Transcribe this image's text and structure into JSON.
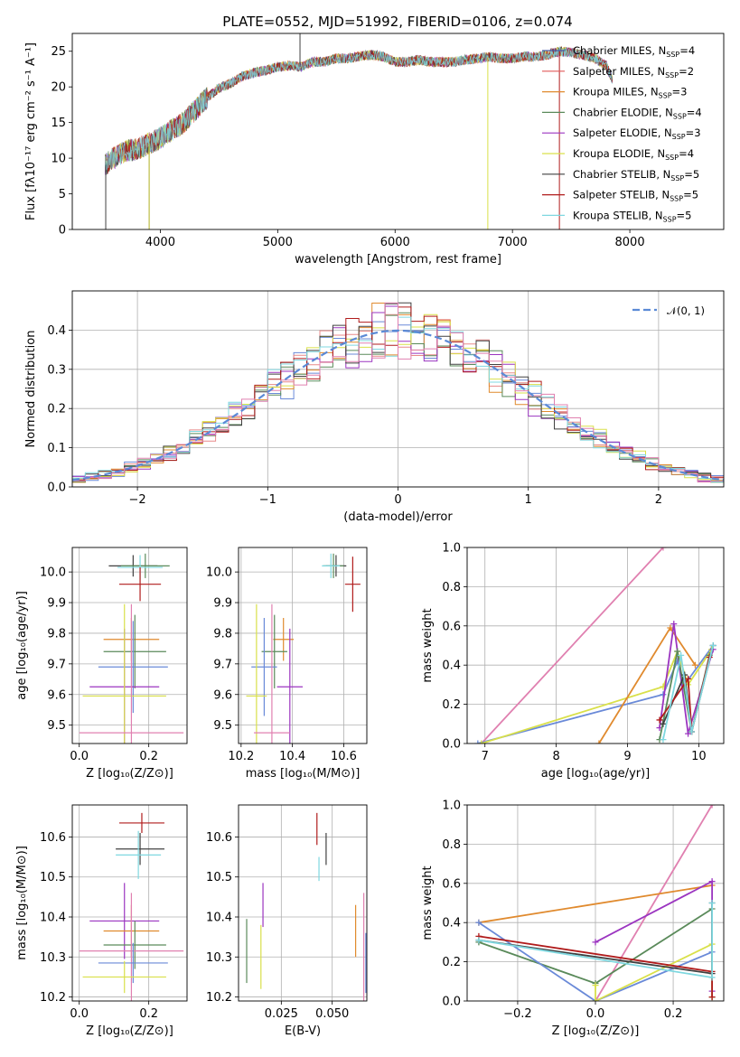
{
  "chart_data": [
    {
      "id": "spectrum",
      "type": "line",
      "title": "PLATE=0552, MJD=51992, FIBERID=0106, z=0.074",
      "xlabel": "wavelength [Angstrom, rest frame]",
      "ylabel": "Flux [fλ10⁻¹⁷ erg cm⁻² s⁻¹ A⁻¹]",
      "xlim": [
        3250,
        8800
      ],
      "ylim": [
        0,
        27.5
      ],
      "xticks": [
        4000,
        5000,
        6000,
        7000,
        8000
      ],
      "yticks": [
        0,
        5,
        10,
        15,
        20,
        25
      ],
      "grid": false,
      "legend_position": "right",
      "continuum": {
        "x": [
          3530,
          3600,
          3700,
          3800,
          3900,
          4000,
          4100,
          4200,
          4300,
          4400,
          4500,
          4600,
          4700,
          4800,
          4900,
          5000,
          5100,
          5200,
          5300,
          5400,
          5500,
          5600,
          5700,
          5800,
          5900,
          6000,
          6100,
          6200,
          6300,
          6400,
          6500,
          6600,
          6700,
          6800,
          6900,
          7000,
          7100,
          7200,
          7300,
          7400,
          7500,
          7600,
          7700,
          7800,
          7850
        ],
        "y": [
          9.0,
          10.0,
          11.0,
          11.3,
          12.0,
          12.8,
          14.0,
          15.0,
          16.8,
          18.5,
          19.8,
          20.5,
          21.5,
          22.0,
          22.3,
          22.8,
          23.0,
          22.8,
          23.5,
          23.5,
          24.0,
          24.0,
          24.3,
          24.5,
          24.2,
          23.5,
          23.5,
          23.8,
          23.5,
          23.5,
          23.5,
          23.8,
          24.0,
          24.2,
          24.0,
          24.0,
          24.3,
          24.2,
          24.5,
          25.0,
          24.8,
          24.5,
          24.0,
          23.0,
          21.0
        ]
      },
      "series": [
        {
          "name": "Chabrier MILES, N_SSP=4",
          "color": "#4a5ea8"
        },
        {
          "name": "Salpeter MILES, N_SSP=2",
          "color": "#e05a5a"
        },
        {
          "name": "Kroupa MILES, N_SSP=3",
          "color": "#e08a2e"
        },
        {
          "name": "Chabrier ELODIE, N_SSP=4",
          "color": "#5a8a5a"
        },
        {
          "name": "Salpeter ELODIE, N_SSP=3",
          "color": "#9b35c0"
        },
        {
          "name": "Kroupa ELODIE, N_SSP=4",
          "color": "#d9e04a"
        },
        {
          "name": "Chabrier STELIB, N_SSP=5",
          "color": "#404040"
        },
        {
          "name": "Salpeter STELIB, N_SSP=5",
          "color": "#b01c1c"
        },
        {
          "name": "Kroupa STELIB, N_SSP=5",
          "color": "#7fd8e0"
        }
      ]
    },
    {
      "id": "residuals",
      "type": "line",
      "title": "",
      "xlabel": "(data-model)/error",
      "ylabel": "Normed distribution",
      "xlim": [
        -2.5,
        2.5
      ],
      "ylim": [
        0,
        0.5
      ],
      "xticks": [
        -2,
        -1,
        0,
        1,
        2
      ],
      "yticks": [
        0.0,
        0.1,
        0.2,
        0.3,
        0.4
      ],
      "grid": true,
      "legend": "𝒩(0, 1)",
      "legend_position": "top-right",
      "bin_width": 0.1,
      "bin_start": -2.5,
      "base_distribution": "normal(0,1)",
      "series_colors": [
        "#6a8ad8",
        "#e88a8a",
        "#e08a2e",
        "#5a8a5a",
        "#9b35c0",
        "#d9e04a",
        "#404040",
        "#b01c1c",
        "#7fd8e0",
        "#e080b0"
      ],
      "gaussian": {
        "name": "N(0,1)",
        "color": "#5b8ad6",
        "mean": 0,
        "sigma": 1
      }
    },
    {
      "id": "age-vs-Z",
      "type": "scatter",
      "xlabel": "Z [log₁₀(Z/Z⊙)]",
      "ylabel": "age  [log₁₀(age/yr)]",
      "xlim": [
        -0.02,
        0.31
      ],
      "ylim": [
        9.44,
        10.08
      ],
      "xticks": [
        0.0,
        0.2
      ],
      "yticks": [
        9.5,
        9.6,
        9.7,
        9.8,
        9.9,
        10.0
      ],
      "grid": true,
      "points": [
        {
          "x": 0.155,
          "y": 10.02,
          "xerr": 0.07,
          "yerr": 0.035,
          "color": "#404040"
        },
        {
          "x": 0.19,
          "y": 10.02,
          "xerr": 0.07,
          "yerr": 0.04,
          "color": "#5a8a5a"
        },
        {
          "x": 0.175,
          "y": 10.015,
          "xerr": 0.065,
          "yerr": 0.04,
          "color": "#7fd8e0"
        },
        {
          "x": 0.175,
          "y": 9.96,
          "xerr": 0.06,
          "yerr": 0.055,
          "color": "#b01c1c"
        },
        {
          "x": 0.15,
          "y": 9.78,
          "xerr": 0.08,
          "yerr": 0.07,
          "color": "#e08a2e"
        },
        {
          "x": 0.16,
          "y": 9.74,
          "xerr": 0.09,
          "yerr": 0.12,
          "color": "#5a8a5a"
        },
        {
          "x": 0.155,
          "y": 9.69,
          "xerr": 0.1,
          "yerr": 0.15,
          "color": "#6a8ad8"
        },
        {
          "x": 0.13,
          "y": 9.625,
          "xerr": 0.1,
          "yerr": 0.19,
          "color": "#9b35c0"
        },
        {
          "x": 0.13,
          "y": 9.595,
          "xerr": 0.12,
          "yerr": 0.3,
          "color": "#d9e04a"
        },
        {
          "x": 0.15,
          "y": 9.475,
          "xerr": 0.15,
          "yerr": 0.42,
          "color": "#e080b0"
        }
      ]
    },
    {
      "id": "age-vs-mass",
      "type": "scatter",
      "xlabel": "mass [log₁₀(M/M⊙)]",
      "ylabel": "",
      "xlim": [
        10.19,
        10.69
      ],
      "ylim": [
        9.44,
        10.08
      ],
      "xticks": [
        10.2,
        10.4,
        10.6
      ],
      "yticks": [
        9.5,
        9.6,
        9.7,
        9.8,
        9.9,
        10.0
      ],
      "grid": true,
      "points": [
        {
          "x": 10.57,
          "y": 10.02,
          "xerr": 0.04,
          "yerr": 0.035,
          "color": "#404040"
        },
        {
          "x": 10.56,
          "y": 10.02,
          "xerr": 0.04,
          "yerr": 0.04,
          "color": "#5a8a5a"
        },
        {
          "x": 10.55,
          "y": 10.02,
          "xerr": 0.035,
          "yerr": 0.04,
          "color": "#7fd8e0"
        },
        {
          "x": 10.635,
          "y": 9.96,
          "xerr": 0.03,
          "yerr": 0.09,
          "color": "#b01c1c"
        },
        {
          "x": 10.365,
          "y": 9.78,
          "xerr": 0.04,
          "yerr": 0.07,
          "color": "#e08a2e"
        },
        {
          "x": 10.33,
          "y": 9.74,
          "xerr": 0.05,
          "yerr": 0.12,
          "color": "#5a8a5a"
        },
        {
          "x": 10.29,
          "y": 9.69,
          "xerr": 0.05,
          "yerr": 0.16,
          "color": "#6a8ad8"
        },
        {
          "x": 10.39,
          "y": 9.625,
          "xerr": 0.05,
          "yerr": 0.19,
          "color": "#9b35c0"
        },
        {
          "x": 10.26,
          "y": 9.595,
          "xerr": 0.04,
          "yerr": 0.3,
          "color": "#d9e04a"
        },
        {
          "x": 10.32,
          "y": 9.475,
          "xerr": 0.07,
          "yerr": 0.42,
          "color": "#e080b0"
        }
      ]
    },
    {
      "id": "weight-vs-age",
      "type": "line",
      "xlabel": "age  [log₁₀(age/yr)]",
      "ylabel": "mass weight",
      "xlim": [
        6.75,
        10.35
      ],
      "ylim": [
        0,
        1.0
      ],
      "xticks": [
        7,
        8,
        9,
        10
      ],
      "yticks": [
        0.0,
        0.2,
        0.4,
        0.6,
        0.8,
        1.0
      ],
      "grid": true,
      "series": [
        {
          "color": "#e080b0",
          "x": [
            6.95,
            9.5
          ],
          "y": [
            0.0,
            1.0
          ]
        },
        {
          "color": "#6a8ad8",
          "x": [
            6.9,
            9.5,
            9.7,
            9.8,
            10.2
          ],
          "y": [
            0.0,
            0.25,
            0.42,
            0.3,
            0.5
          ]
        },
        {
          "color": "#d9e04a",
          "x": [
            6.95,
            9.5,
            9.7,
            9.85,
            10.18
          ],
          "y": [
            0.0,
            0.29,
            0.47,
            0.3,
            0.48
          ]
        },
        {
          "color": "#e08a2e",
          "x": [
            8.6,
            9.6,
            9.95
          ],
          "y": [
            0.0,
            0.59,
            0.4
          ]
        },
        {
          "color": "#9b35c0",
          "x": [
            9.45,
            9.65,
            9.85,
            10.2
          ],
          "y": [
            0.08,
            0.61,
            0.05,
            0.48
          ]
        },
        {
          "color": "#5a8a5a",
          "x": [
            9.45,
            9.7,
            9.9,
            10.15
          ],
          "y": [
            0.02,
            0.47,
            0.06,
            0.45
          ]
        },
        {
          "color": "#404040",
          "x": [
            9.5,
            9.8,
            9.9,
            10.2
          ],
          "y": [
            0.1,
            0.35,
            0.06,
            0.5
          ]
        },
        {
          "color": "#b01c1c",
          "x": [
            9.45,
            9.85,
            9.9,
            10.15
          ],
          "y": [
            0.12,
            0.33,
            0.06,
            0.44
          ]
        },
        {
          "color": "#7fd8e0",
          "x": [
            9.5,
            9.75,
            9.9,
            10.2
          ],
          "y": [
            0.02,
            0.45,
            0.06,
            0.5
          ]
        }
      ]
    },
    {
      "id": "mass-vs-Z",
      "type": "scatter",
      "xlabel": "Z [log₁₀(Z/Z⊙)]",
      "ylabel": "mass [log₁₀(M/M⊙)]",
      "xlim": [
        -0.02,
        0.31
      ],
      "ylim": [
        10.19,
        10.68
      ],
      "xticks": [
        0.0,
        0.2
      ],
      "yticks": [
        10.2,
        10.3,
        10.4,
        10.5,
        10.6
      ],
      "grid": true,
      "points": [
        {
          "x": 0.18,
          "y": 10.635,
          "xerr": 0.065,
          "yerr": 0.025,
          "color": "#b01c1c"
        },
        {
          "x": 0.175,
          "y": 10.57,
          "xerr": 0.07,
          "yerr": 0.04,
          "color": "#404040"
        },
        {
          "x": 0.17,
          "y": 10.555,
          "xerr": 0.065,
          "yerr": 0.06,
          "color": "#7fd8e0"
        },
        {
          "x": 0.13,
          "y": 10.39,
          "xerr": 0.1,
          "yerr": 0.095,
          "color": "#9b35c0"
        },
        {
          "x": 0.15,
          "y": 10.365,
          "xerr": 0.08,
          "yerr": 0.065,
          "color": "#e08a2e"
        },
        {
          "x": 0.16,
          "y": 10.33,
          "xerr": 0.09,
          "yerr": 0.06,
          "color": "#5a8a5a"
        },
        {
          "x": 0.15,
          "y": 10.315,
          "xerr": 0.15,
          "yerr": 0.145,
          "color": "#e080b0"
        },
        {
          "x": 0.155,
          "y": 10.285,
          "xerr": 0.1,
          "yerr": 0.05,
          "color": "#6a8ad8"
        },
        {
          "x": 0.13,
          "y": 10.25,
          "xerr": 0.12,
          "yerr": 0.04,
          "color": "#d9e04a"
        }
      ]
    },
    {
      "id": "mass-vs-EBV",
      "type": "scatter",
      "xlabel": "E(B-V)",
      "ylabel": "",
      "xlim": [
        0.004,
        0.067
      ],
      "ylim": [
        10.19,
        10.68
      ],
      "xticks": [
        0.025,
        0.05
      ],
      "yticks": [
        10.2,
        10.3,
        10.4,
        10.5,
        10.6
      ],
      "grid": true,
      "points": [
        {
          "x": 0.0425,
          "y": 10.62,
          "yerr": 0.04,
          "color": "#b01c1c"
        },
        {
          "x": 0.047,
          "y": 10.57,
          "yerr": 0.04,
          "color": "#404040"
        },
        {
          "x": 0.0435,
          "y": 10.52,
          "yerr": 0.03,
          "color": "#7fd8e0"
        },
        {
          "x": 0.016,
          "y": 10.43,
          "yerr": 0.055,
          "color": "#9b35c0"
        },
        {
          "x": 0.0615,
          "y": 10.365,
          "yerr": 0.065,
          "color": "#e08a2e"
        },
        {
          "x": 0.008,
          "y": 10.315,
          "yerr": 0.08,
          "color": "#5a8a5a"
        },
        {
          "x": 0.0655,
          "y": 10.315,
          "yerr": 0.145,
          "color": "#e080b0"
        },
        {
          "x": 0.0665,
          "y": 10.285,
          "yerr": 0.075,
          "color": "#6a8ad8"
        },
        {
          "x": 0.015,
          "y": 10.3,
          "yerr": 0.08,
          "color": "#d9e04a"
        }
      ]
    },
    {
      "id": "weight-vs-Z",
      "type": "line",
      "xlabel": "Z [log₁₀(Z/Z⊙)]",
      "ylabel": "mass weight",
      "xlim": [
        -0.33,
        0.33
      ],
      "ylim": [
        0,
        1.0
      ],
      "xticks": [
        -0.2,
        0.0,
        0.2
      ],
      "yticks": [
        0.0,
        0.2,
        0.4,
        0.6,
        0.8,
        1.0
      ],
      "grid": true,
      "series": [
        {
          "color": "#e080b0",
          "x": [
            0.0,
            0.3
          ],
          "y": [
            0.0,
            1.0
          ]
        },
        {
          "color": "#e08a2e",
          "x": [
            -0.3,
            0.3
          ],
          "y": [
            0.4,
            0.59
          ]
        },
        {
          "color": "#9b35c0",
          "x": [
            0.0,
            0.3,
            0.3
          ],
          "y": [
            0.3,
            0.61,
            0.05
          ]
        },
        {
          "color": "#5a8a5a",
          "x": [
            -0.3,
            0.0,
            0.3,
            0.3
          ],
          "y": [
            0.3,
            0.09,
            0.47,
            0.02
          ]
        },
        {
          "color": "#6a8ad8",
          "x": [
            -0.3,
            0.0,
            0.3,
            0.3
          ],
          "y": [
            0.4,
            0.0,
            0.25,
            0.02
          ]
        },
        {
          "color": "#d9e04a",
          "x": [
            0.0,
            0.0,
            0.3,
            0.3
          ],
          "y": [
            0.08,
            0.0,
            0.29,
            0.02
          ]
        },
        {
          "color": "#404040",
          "x": [
            -0.3,
            0.3,
            0.3
          ],
          "y": [
            0.31,
            0.14,
            0.5
          ]
        },
        {
          "color": "#b01c1c",
          "x": [
            -0.3,
            0.3,
            0.3
          ],
          "y": [
            0.33,
            0.15,
            0.02
          ]
        },
        {
          "color": "#7fd8e0",
          "x": [
            -0.3,
            0.3,
            0.3
          ],
          "y": [
            0.31,
            0.12,
            0.5
          ]
        }
      ]
    }
  ]
}
